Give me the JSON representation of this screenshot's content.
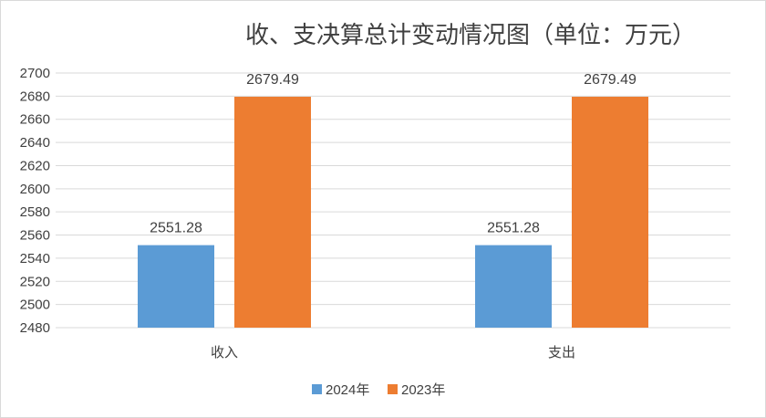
{
  "chart_data": {
    "type": "bar",
    "title": "收、支决算总计变动情况图（单位：万元）",
    "categories": [
      "收入",
      "支出"
    ],
    "series": [
      {
        "name": "2024年",
        "values": [
          2551.28,
          2551.28
        ],
        "color": "#5b9bd5"
      },
      {
        "name": "2023年",
        "values": [
          2679.49,
          2679.49
        ],
        "color": "#ed7d31"
      }
    ],
    "data_labels": [
      [
        "2551.28",
        "2551.28"
      ],
      [
        "2679.49",
        "2679.49"
      ]
    ],
    "ylim": [
      2480,
      2700
    ],
    "yticks": [
      2480,
      2500,
      2520,
      2540,
      2560,
      2580,
      2600,
      2620,
      2640,
      2660,
      2680,
      2700
    ],
    "grid": true,
    "legend": "bottom-center",
    "xlabel": "",
    "ylabel": ""
  }
}
